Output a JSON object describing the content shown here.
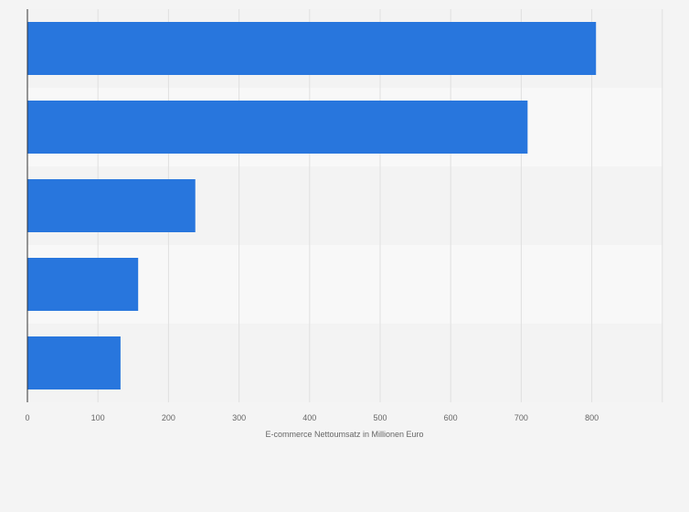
{
  "colors": {
    "bar": "#2876dd",
    "band_dark": "#f3f3f3",
    "band_light": "#f8f8f8",
    "grid": "#e0e0e0",
    "axis": "#333333",
    "text": "#666666"
  },
  "chart_data": {
    "type": "bar",
    "orientation": "horizontal",
    "categories": [
      "",
      "",
      "",
      "",
      ""
    ],
    "values": [
      806,
      709,
      238,
      157,
      132
    ],
    "title": "",
    "xlabel": "E-commerce Nettoumsatz in Millionen Euro",
    "ylabel": "",
    "xlim": [
      0,
      900
    ],
    "xticks": [
      0,
      100,
      200,
      300,
      400,
      500,
      600,
      700,
      800
    ],
    "grid": true,
    "legend": "none"
  }
}
